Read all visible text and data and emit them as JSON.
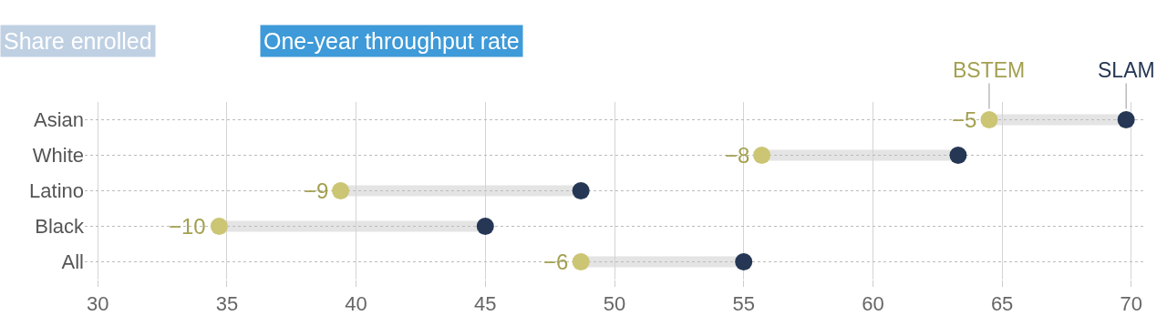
{
  "chart_data": {
    "type": "scatter",
    "orientation": "horizontal",
    "categories": [
      "Asian",
      "White",
      "Latino",
      "Black",
      "All"
    ],
    "series": [
      {
        "name": "BSTEM",
        "color": "#cbc574",
        "values": [
          64.5,
          55.7,
          39.4,
          34.7,
          48.7
        ]
      },
      {
        "name": "SLAM",
        "color": "#253754",
        "values": [
          69.8,
          63.3,
          48.7,
          45.0,
          55.0
        ]
      }
    ],
    "xlim": [
      29.5,
      70.5
    ],
    "xticks": [
      30,
      35,
      40,
      45,
      50,
      55,
      60,
      65,
      70
    ],
    "grid": true,
    "marker": "circle",
    "annotations": [
      "Share enrolled",
      "One-year throughput rate",
      {
        "text": "−5",
        "x": 64.5,
        "y": "Asian"
      },
      {
        "text": "−8",
        "x": 55.7,
        "y": "White"
      },
      {
        "text": "−9",
        "x": 39.4,
        "y": "Latino"
      },
      {
        "text": "−10",
        "x": 34.7,
        "y": "Black"
      },
      {
        "text": "−6",
        "x": 48.7,
        "y": "All"
      }
    ]
  }
}
